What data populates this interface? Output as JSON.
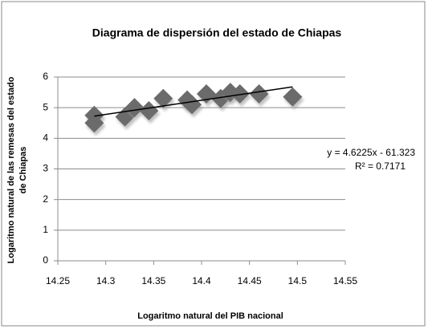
{
  "chart_data": {
    "type": "scatter",
    "title": "Diagrama de dispersión del estado de Chiapas",
    "xlabel": "Logaritmo natural del PIB nacional",
    "ylabel": [
      "Logaritmo natural de las remesas del estado",
      "de Chiapas"
    ],
    "series": [
      {
        "color": "#6b6b6b",
        "x": [
          14.288,
          14.288,
          14.32,
          14.33,
          14.345,
          14.36,
          14.385,
          14.39,
          14.405,
          14.42,
          14.43,
          14.44,
          14.46,
          14.495
        ],
        "values": [
          4.75,
          4.5,
          4.7,
          5.0,
          4.9,
          5.3,
          5.25,
          5.1,
          5.45,
          5.3,
          5.5,
          5.45,
          5.45,
          5.35
        ]
      }
    ],
    "trendline": {
      "slope": 4.6225,
      "intercept": -61.323,
      "equation": "y = 4.6225x - 61.323",
      "r2": "R² = 0.7171",
      "color": "#000000"
    },
    "xlim": [
      14.25,
      14.55
    ],
    "xticks": [
      14.25,
      14.3,
      14.35,
      14.4,
      14.45,
      14.5,
      14.55
    ],
    "ylim": [
      0,
      6
    ],
    "yticks": [
      0,
      1,
      2,
      3,
      4,
      5,
      6
    ],
    "grid": true
  }
}
